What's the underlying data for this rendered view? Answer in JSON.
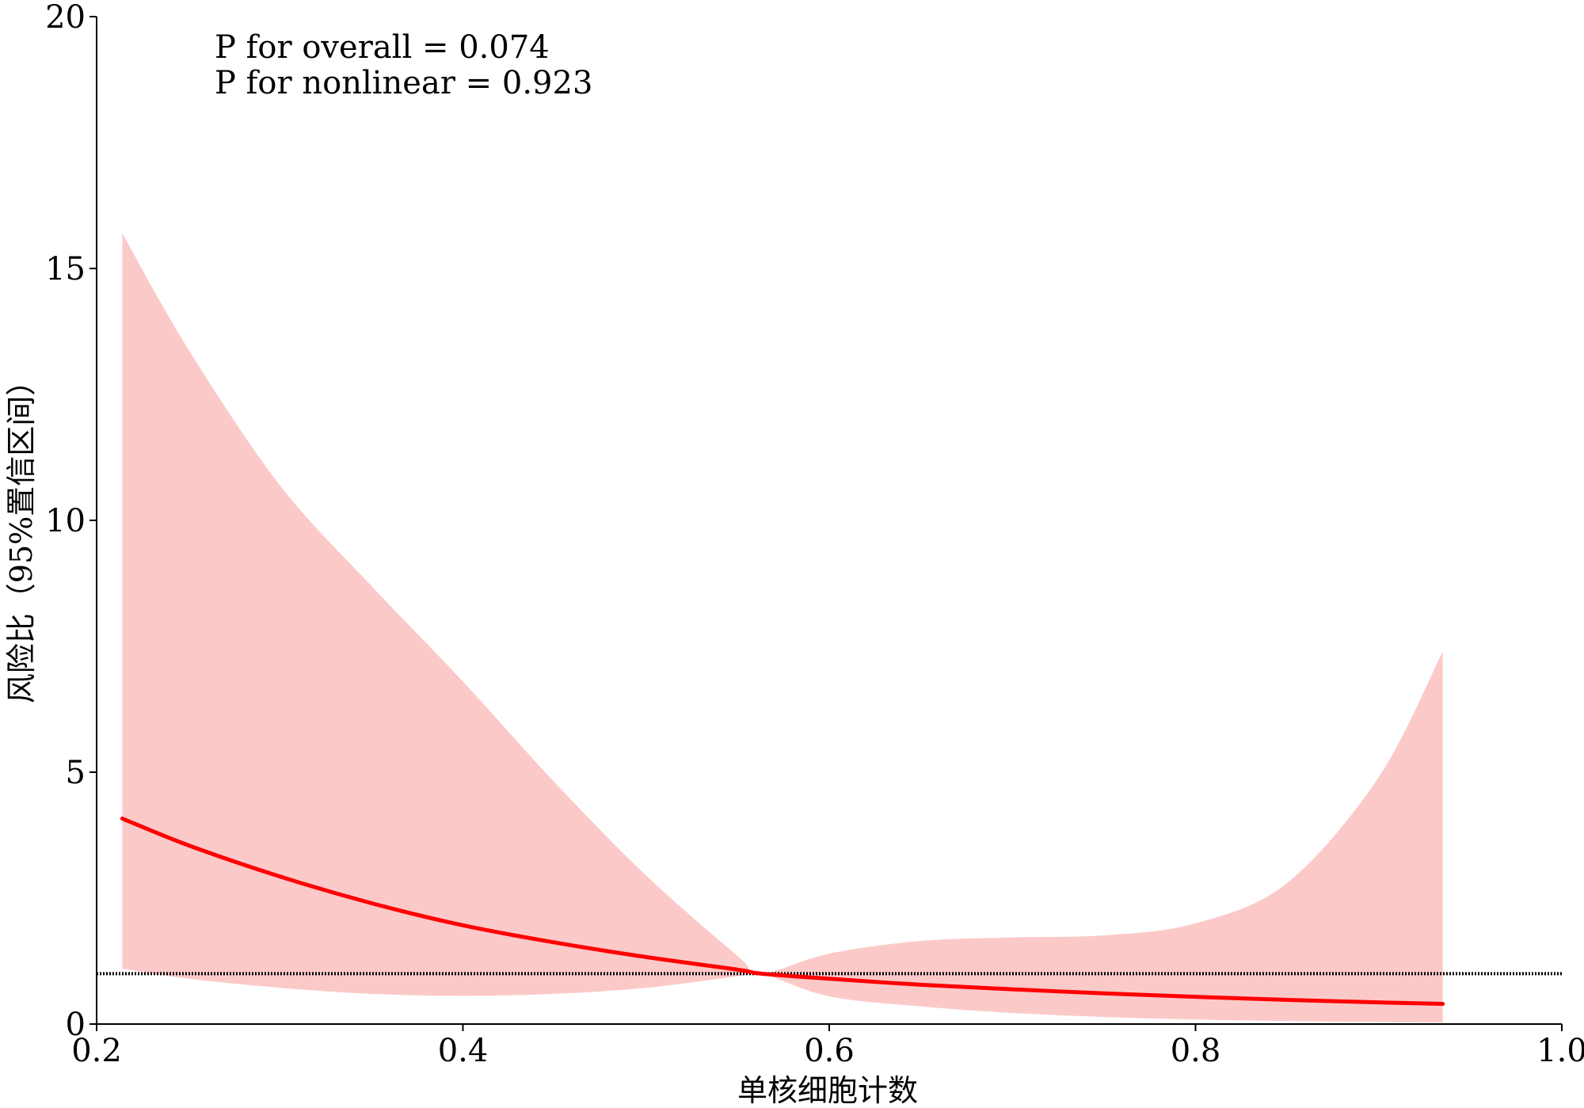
{
  "chart_data": {
    "type": "line",
    "title": "",
    "xlabel": "单核细胞计数",
    "ylabel": "风险比（95%置信区间）",
    "xlim": [
      0.2,
      1.0
    ],
    "ylim": [
      0,
      20
    ],
    "xticks": [
      0.2,
      0.4,
      0.6,
      0.8,
      1.0
    ],
    "xtick_labels": [
      "0.2",
      "0.4",
      "0.6",
      "0.8",
      "1.0"
    ],
    "yticks": [
      0,
      5,
      10,
      15,
      20
    ],
    "ytick_labels": [
      "0",
      "5",
      "10",
      "15",
      "20"
    ],
    "annotations": [
      "P for overall = 0.074",
      "P for nonlinear = 0.923"
    ],
    "reference_line": {
      "y": 1,
      "style": "dotted",
      "color": "#000000"
    },
    "grid": false,
    "colors": {
      "curve": "#ff0000",
      "band": "#fcc9c9",
      "axis": "#000000"
    },
    "series": [
      {
        "x": [
          0.214,
          0.25,
          0.3,
          0.35,
          0.4,
          0.45,
          0.5,
          0.55,
          0.563,
          0.6,
          0.65,
          0.7,
          0.75,
          0.8,
          0.85,
          0.9,
          0.935
        ],
        "y": [
          4.08,
          3.55,
          2.93,
          2.4,
          1.96,
          1.62,
          1.33,
          1.08,
          1.0,
          0.9,
          0.78,
          0.69,
          0.61,
          0.54,
          0.48,
          0.43,
          0.4
        ],
        "lower": [
          1.1,
          0.9,
          0.72,
          0.6,
          0.56,
          0.6,
          0.72,
          0.95,
          1.0,
          0.55,
          0.35,
          0.22,
          0.14,
          0.09,
          0.06,
          0.04,
          0.03
        ],
        "upper": [
          15.7,
          13.4,
          10.7,
          8.7,
          6.8,
          4.8,
          2.95,
          1.35,
          1.0,
          1.4,
          1.65,
          1.72,
          1.76,
          2.0,
          2.8,
          4.9,
          7.4
        ]
      }
    ]
  }
}
